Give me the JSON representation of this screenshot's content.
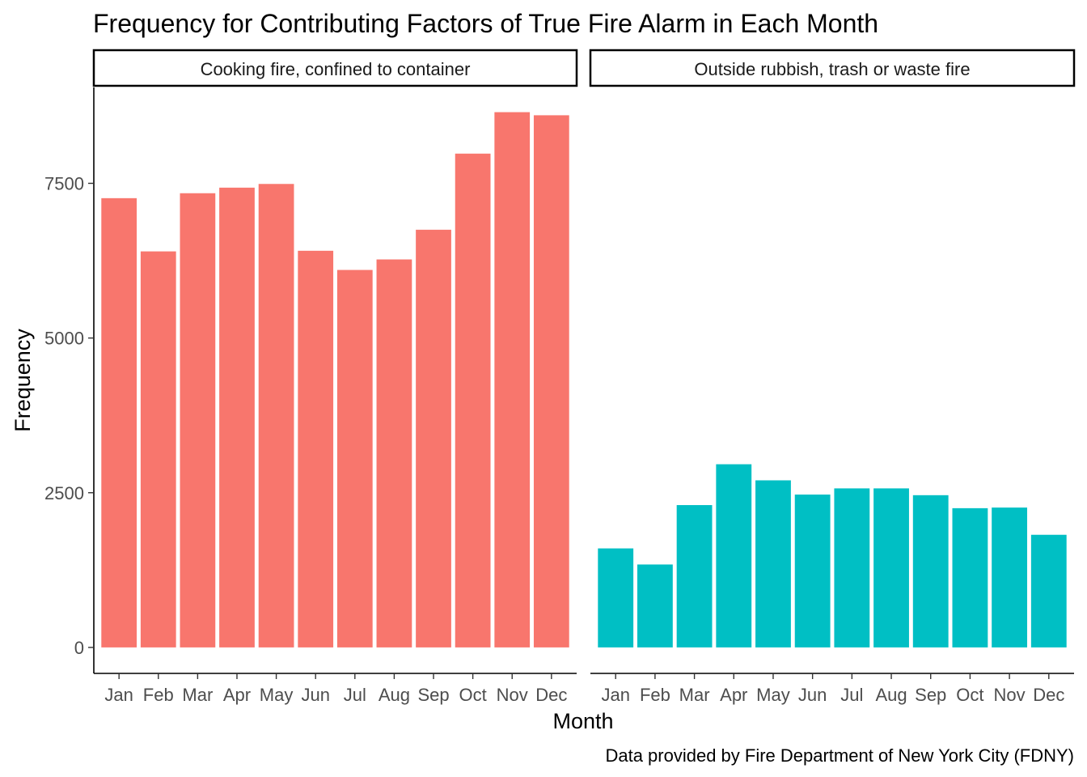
{
  "chart_data": {
    "type": "bar",
    "title": "Frequency for Contributing Factors of True Fire Alarm in Each Month",
    "xlabel": "Month",
    "ylabel": "Frequency",
    "caption": "Data provided by Fire Department of New York City (FDNY)",
    "categories": [
      "Jan",
      "Feb",
      "Mar",
      "Apr",
      "May",
      "Jun",
      "Jul",
      "Aug",
      "Sep",
      "Oct",
      "Nov",
      "Dec"
    ],
    "ylim": [
      -420,
      9050
    ],
    "yticks": [
      0,
      2500,
      5000,
      7500
    ],
    "grid": false,
    "legend": "none",
    "facets": [
      {
        "name": "Cooking fire, confined to container",
        "color": "#F8766D",
        "values": [
          7260,
          6400,
          7340,
          7430,
          7490,
          6410,
          6100,
          6270,
          6750,
          7980,
          8650,
          8600
        ]
      },
      {
        "name": "Outside rubbish, trash or waste fire",
        "color": "#00BFC4",
        "values": [
          1600,
          1340,
          2300,
          2960,
          2700,
          2470,
          2570,
          2570,
          2460,
          2250,
          2260,
          1820
        ]
      }
    ]
  }
}
